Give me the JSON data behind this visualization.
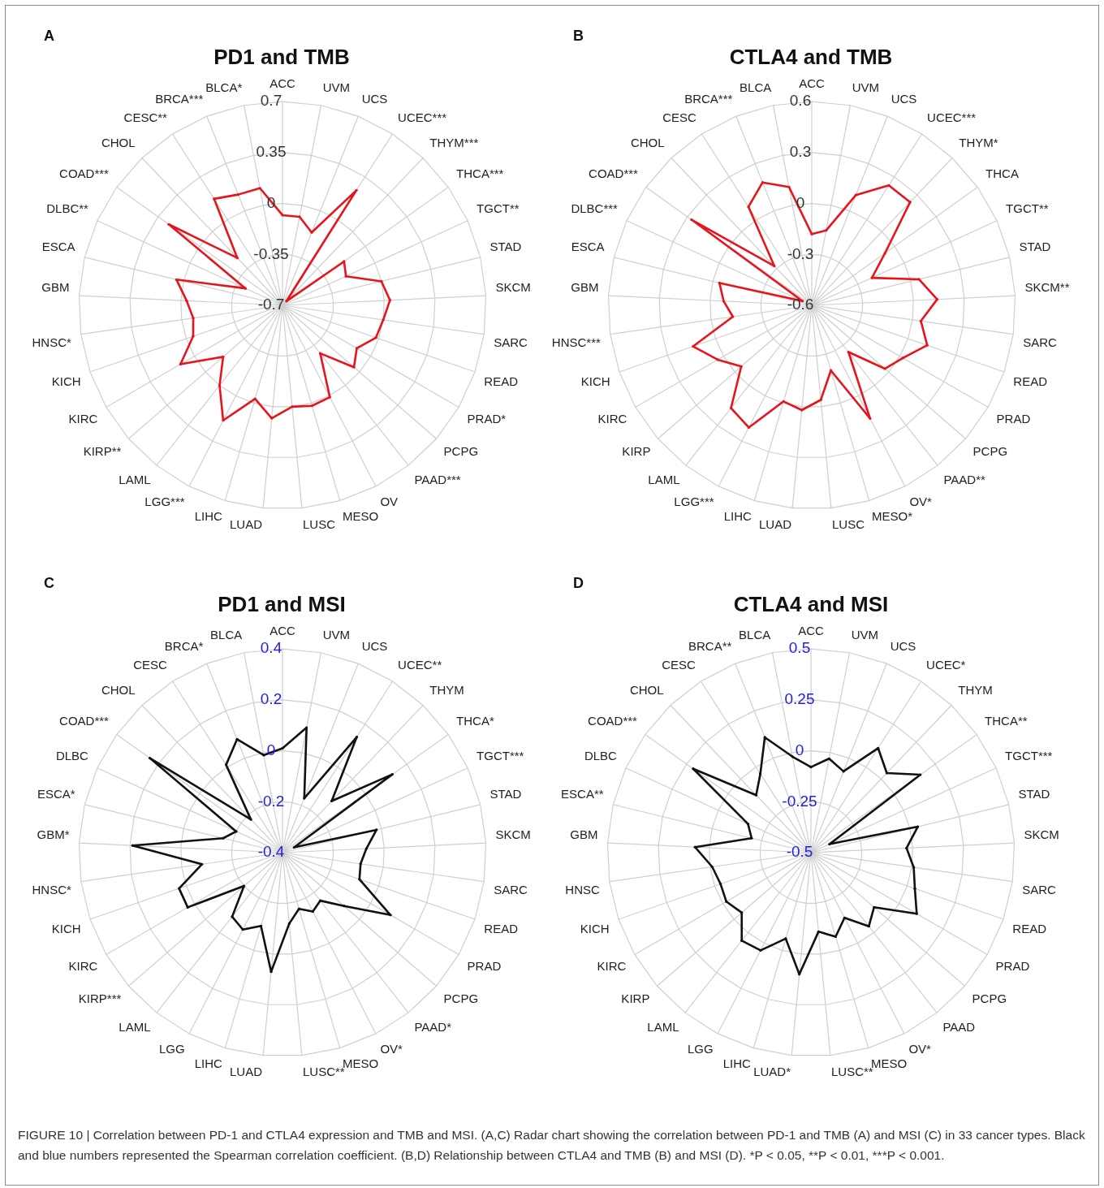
{
  "chart_data": [
    {
      "type": "radar",
      "title": "PD1 and TMB",
      "annotations": [
        "A"
      ],
      "categories": [
        "ACC",
        "UVM",
        "UCS",
        "UCEC***",
        "THYM***",
        "THCA***",
        "TGCT**",
        "STAD",
        "SKCM",
        "SARC",
        "READ",
        "PRAD*",
        "PCPG",
        "PAAD***",
        "OV",
        "MESO",
        "LUSC",
        "LUAD",
        "LIHC",
        "LGG***",
        "LAML",
        "KIRP**",
        "KIRC",
        "KICH",
        "HNSC*",
        "GBM",
        "ESCA",
        "DLBC**",
        "COAD***",
        "CHOL",
        "CESC**",
        "BRCA***",
        "BLCA*"
      ],
      "series": [
        {
          "color": "#e8141c",
          "values": [
            -0.08,
            -0.08,
            -0.16,
            0.24,
            -0.66,
            -0.18,
            -0.22,
            0.0,
            0.04,
            0.0,
            -0.02,
            -0.11,
            -0.05,
            -0.28,
            0.01,
            0.02,
            0.0,
            0.08,
            -0.03,
            0.19,
            0.0,
            -0.16,
            0.11,
            -0.05,
            -0.08,
            -0.04,
            0.05,
            -0.42,
            0.26,
            -0.25,
            0.17,
            0.12,
            0.12
          ]
        }
      ],
      "ylim": [
        -0.7,
        0.7
      ],
      "yticks": [
        -0.7,
        -0.35,
        0,
        0.35,
        0.7
      ],
      "grid": true,
      "marker": "circle"
    },
    {
      "type": "radar",
      "title": "CTLA4 and TMB",
      "annotations": [
        "B"
      ],
      "categories": [
        "ACC",
        "UVM",
        "UCS",
        "UCEC***",
        "THYM*",
        "THCA",
        "TGCT**",
        "STAD",
        "SKCM**",
        "SARC",
        "READ",
        "PRAD",
        "PCPG",
        "PAAD**",
        "OV*",
        "MESO*",
        "LUSC",
        "LUAD",
        "LIHC",
        "LGG***",
        "LAML",
        "KIRP",
        "KIRC",
        "KICH",
        "HNSC***",
        "GBM",
        "ESCA",
        "DLBC***",
        "COAD***",
        "CHOL",
        "CESC",
        "BRCA***",
        "BLCA"
      ],
      "series": [
        {
          "color": "#e8141c",
          "values": [
            -0.18,
            -0.15,
            0.1,
            0.24,
            0.24,
            -0.07,
            -0.21,
            0.05,
            0.14,
            0.05,
            0.12,
            0.02,
            -0.03,
            -0.25,
            0.15,
            -0.2,
            -0.04,
            0.02,
            -0.01,
            0.21,
            0.17,
            -0.05,
            0.04,
            0.14,
            -0.13,
            -0.08,
            -0.04,
            -0.54,
            0.27,
            -0.28,
            0.09,
            0.18,
            0.11
          ]
        }
      ],
      "ylim": [
        -0.6,
        0.6
      ],
      "yticks": [
        -0.6,
        -0.3,
        0,
        0.3,
        0.6
      ],
      "grid": true,
      "marker": "circle"
    },
    {
      "type": "radar",
      "title": "PD1 and MSI",
      "annotations": [
        "C"
      ],
      "categories": [
        "ACC",
        "UVM",
        "UCS",
        "UCEC**",
        "THYM",
        "THCA*",
        "TGCT***",
        "STAD",
        "SKCM",
        "SARC",
        "READ",
        "PRAD",
        "PCPG",
        "PAAD*",
        "OV*",
        "MESO",
        "LUSC**",
        "LUAD",
        "LIHC",
        "LGG",
        "LAML",
        "KIRP***",
        "KIRC",
        "KICH",
        "HNSC*",
        "GBM*",
        "ESCA*",
        "DLBC",
        "COAD***",
        "CHOL",
        "CESC",
        "BRCA*",
        "BLCA"
      ],
      "series": [
        {
          "color": "#111111",
          "values": [
            0.01,
            0.1,
            -0.17,
            0.14,
            -0.12,
            0.13,
            -0.35,
            -0.02,
            -0.07,
            -0.09,
            -0.08,
            0.09,
            -0.08,
            -0.16,
            -0.14,
            -0.17,
            -0.12,
            0.07,
            -0.1,
            -0.06,
            -0.08,
            -0.2,
            0.03,
            0.03,
            -0.08,
            0.19,
            -0.16,
            -0.2,
            0.24,
            -0.22,
            0.01,
            0.08,
            -0.01
          ]
        }
      ],
      "ylim": [
        -0.4,
        0.4
      ],
      "yticks": [
        -0.4,
        -0.2,
        0,
        0.2,
        0.4
      ],
      "grid": true,
      "marker": "circle"
    },
    {
      "type": "radar",
      "title": "CTLA4 and MSI",
      "annotations": [
        "D",
        "FIGURE 10 | Correlation between PD-1 and CTLA4 expression and TMB and MSI. (A,C) Radar chart showing the correlation between PD-1 and TMB (A) and MSI (C) in 33 cancer types. Black and blue numbers represented the Spearman correlation coefficient. (B,D) Relationship between CTLA4 and TMB (B) and MSI (D). *P < 0.05, **P < 0.01, ***P < 0.001."
      ],
      "categories": [
        "ACC",
        "UVM",
        "UCS",
        "UCEC*",
        "THYM",
        "THCA**",
        "TGCT***",
        "STAD",
        "SKCM",
        "SARC",
        "READ",
        "PRAD",
        "PCPG",
        "PAAD",
        "OV*",
        "MESO",
        "LUSC**",
        "LUAD*",
        "LIHC",
        "LGG",
        "LAML",
        "KIRP",
        "KIRC",
        "KICH",
        "HNSC",
        "GBM",
        "ESCA**",
        "DLBC",
        "COAD***",
        "CHOL",
        "CESC",
        "BRCA**",
        "BLCA"
      ],
      "series": [
        {
          "color": "#111111",
          "values": [
            -0.08,
            -0.03,
            -0.07,
            0.11,
            0.04,
            0.16,
            -0.4,
            0.04,
            -0.03,
            0.01,
            0.04,
            0.1,
            -0.09,
            -0.04,
            -0.14,
            -0.07,
            -0.11,
            0.1,
            -0.06,
            0.04,
            0.05,
            -0.05,
            -0.02,
            -0.03,
            -0.01,
            0.07,
            -0.2,
            -0.16,
            0.21,
            -0.11,
            -0.04,
            0.11,
            -0.02
          ]
        }
      ],
      "ylim": [
        -0.5,
        0.5
      ],
      "yticks": [
        -0.5,
        -0.25,
        0,
        0.25,
        0.5
      ],
      "grid": true,
      "marker": "circle"
    }
  ]
}
